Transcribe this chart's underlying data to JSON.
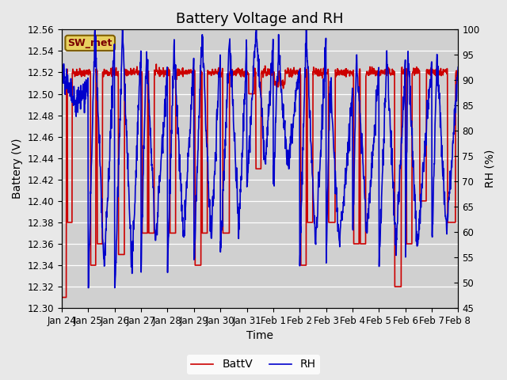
{
  "title": "Battery Voltage and RH",
  "xlabel": "Time",
  "ylabel_left": "Battery (V)",
  "ylabel_right": "RH (%)",
  "ylim_left": [
    12.3,
    12.56
  ],
  "ylim_right": [
    45,
    100
  ],
  "yticks_left": [
    12.3,
    12.32,
    12.34,
    12.36,
    12.38,
    12.4,
    12.42,
    12.44,
    12.46,
    12.48,
    12.5,
    12.52,
    12.54,
    12.56
  ],
  "yticks_right": [
    45,
    50,
    55,
    60,
    65,
    70,
    75,
    80,
    85,
    90,
    95,
    100
  ],
  "x_tick_labels": [
    "Jan 24",
    "Jan 25",
    "Jan 26",
    "Jan 27",
    "Jan 28",
    "Jan 29",
    "Jan 30",
    "Jan 31",
    "Feb 1",
    "Feb 2",
    "Feb 3",
    "Feb 4",
    "Feb 5",
    "Feb 6",
    "Feb 7",
    "Feb 8"
  ],
  "battv_color": "#cc0000",
  "rh_color": "#0000cc",
  "battv_label": "BattV",
  "rh_label": "RH",
  "station_label": "SW_met",
  "bg_color": "#e8e8e8",
  "plot_bg_color": "#d0d0d0",
  "title_fontsize": 13,
  "axis_label_fontsize": 10,
  "tick_fontsize": 8.5,
  "legend_fontsize": 10,
  "line_width": 1.2
}
